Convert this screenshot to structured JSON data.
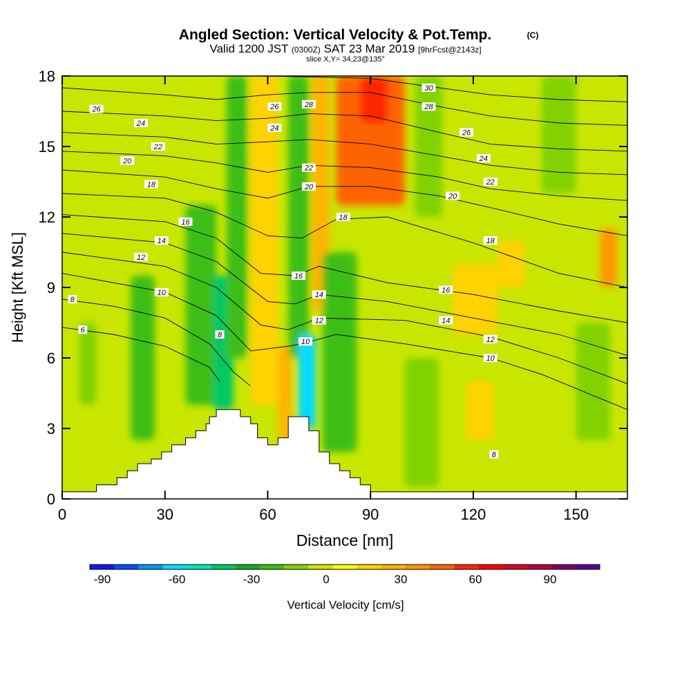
{
  "chart_data": {
    "type": "heatmap",
    "title": "Angled Section: Vertical Velocity & Pot.Temp.",
    "title_tag": "(C)",
    "subtitle": {
      "valid_prefix": "Valid 1200 JST",
      "utc": "(0300Z)",
      "valid_date": "SAT 23 Mar 2019",
      "forecast": "[9hrFcst@2143z]"
    },
    "slice_label": "slice X,Y= 34,23@135°",
    "xlabel": "Distance [nm]",
    "ylabel": "Height [Kft MSL]",
    "xlim": [
      0,
      165
    ],
    "ylim": [
      0,
      18
    ],
    "x_ticks": [
      "0",
      "30",
      "60",
      "90",
      "120",
      "150"
    ],
    "y_ticks": [
      "0",
      "3",
      "6",
      "9",
      "12",
      "15",
      "18"
    ],
    "colorbar": {
      "label": "Vertical Velocity [cm/s]",
      "tick_labels": [
        "-90",
        "-60",
        "-30",
        "0",
        "30",
        "60",
        "90"
      ],
      "bounds": [
        -95,
        110
      ],
      "colors": [
        "#1414ff",
        "#0050ff",
        "#0096ff",
        "#00dcff",
        "#00e6b4",
        "#00c864",
        "#14aa28",
        "#3cbe14",
        "#82d200",
        "#c8e600",
        "#ffff00",
        "#ffd200",
        "#ffb400",
        "#ff9600",
        "#ff6400",
        "#ff2800",
        "#ff0000",
        "#dc0028",
        "#b4003c",
        "#820064",
        "#5a0096"
      ]
    },
    "terrain_kft": [
      [
        0,
        0.3
      ],
      [
        10,
        0.3
      ],
      [
        10,
        0.6
      ],
      [
        16,
        0.6
      ],
      [
        16,
        0.9
      ],
      [
        19,
        0.9
      ],
      [
        19,
        1.2
      ],
      [
        22,
        1.2
      ],
      [
        22,
        1.5
      ],
      [
        26,
        1.5
      ],
      [
        26,
        1.7
      ],
      [
        29,
        1.7
      ],
      [
        29,
        2.0
      ],
      [
        32,
        2.0
      ],
      [
        32,
        2.3
      ],
      [
        36,
        2.3
      ],
      [
        36,
        2.6
      ],
      [
        39,
        2.6
      ],
      [
        39,
        2.9
      ],
      [
        42,
        2.9
      ],
      [
        42,
        3.2
      ],
      [
        43,
        3.2
      ],
      [
        43,
        3.5
      ],
      [
        45,
        3.5
      ],
      [
        45,
        3.8
      ],
      [
        52,
        3.8
      ],
      [
        52,
        3.5
      ],
      [
        55,
        3.5
      ],
      [
        55,
        3.2
      ],
      [
        57,
        3.2
      ],
      [
        57,
        2.6
      ],
      [
        60,
        2.6
      ],
      [
        60,
        2.3
      ],
      [
        63,
        2.3
      ],
      [
        63,
        2.6
      ],
      [
        66,
        2.6
      ],
      [
        66,
        3.5
      ],
      [
        72,
        3.5
      ],
      [
        72,
        2.9
      ],
      [
        75,
        2.9
      ],
      [
        75,
        2.0
      ],
      [
        78,
        2.0
      ],
      [
        78,
        1.5
      ],
      [
        81,
        1.5
      ],
      [
        81,
        1.2
      ],
      [
        84,
        1.2
      ],
      [
        84,
        0.9
      ],
      [
        87,
        0.9
      ],
      [
        87,
        0.6
      ],
      [
        90,
        0.6
      ],
      [
        90,
        0.3
      ],
      [
        165,
        0.3
      ]
    ],
    "vertical_velocity_bands": [
      {
        "x": 5,
        "w": 5,
        "y": [
          4.0,
          7.5
        ],
        "w_cms": -10
      },
      {
        "x": 20,
        "w": 7,
        "y": [
          2.5,
          9.5
        ],
        "w_cms": -20
      },
      {
        "x": 36,
        "w": 9,
        "y": [
          4.0,
          12.5
        ],
        "w_cms": -20
      },
      {
        "x": 44,
        "w": 6,
        "y": [
          3.8,
          9.5
        ],
        "w_cms": -45
      },
      {
        "x": 48,
        "w": 6,
        "y": [
          6.0,
          18.0
        ],
        "w_cms": -20
      },
      {
        "x": 55,
        "w": 8,
        "y": [
          4.0,
          18.0
        ],
        "w_cms": 20
      },
      {
        "x": 63,
        "w": 4,
        "y": [
          2.5,
          6.5
        ],
        "w_cms": 30
      },
      {
        "x": 66,
        "w": 6,
        "y": [
          6.0,
          18.0
        ],
        "w_cms": -25
      },
      {
        "x": 69,
        "w": 5,
        "y": [
          3.0,
          7.0
        ],
        "w_cms": -60
      },
      {
        "x": 73,
        "w": 5,
        "y": [
          8.0,
          18.0
        ],
        "w_cms": 30
      },
      {
        "x": 76,
        "w": 10,
        "y": [
          2.0,
          10.5
        ],
        "w_cms": -25
      },
      {
        "x": 80,
        "w": 20,
        "y": [
          12.5,
          18.0
        ],
        "w_cms": 50
      },
      {
        "x": 87,
        "w": 8,
        "y": [
          16.0,
          18.0
        ],
        "w_cms": 60
      },
      {
        "x": 100,
        "w": 10,
        "y": [
          0.5,
          6.0
        ],
        "w_cms": -10
      },
      {
        "x": 103,
        "w": 8,
        "y": [
          12.0,
          18.0
        ],
        "w_cms": -15
      },
      {
        "x": 118,
        "w": 8,
        "y": [
          2.5,
          5.0
        ],
        "w_cms": 20
      },
      {
        "x": 114,
        "w": 13,
        "y": [
          7.0,
          10.0
        ],
        "w_cms": 20
      },
      {
        "x": 127,
        "w": 8,
        "y": [
          9.0,
          11.0
        ],
        "w_cms": 20
      },
      {
        "x": 140,
        "w": 10,
        "y": [
          13.0,
          18.0
        ],
        "w_cms": -10
      },
      {
        "x": 150,
        "w": 10,
        "y": [
          2.5,
          7.5
        ],
        "w_cms": -15
      },
      {
        "x": 157,
        "w": 5,
        "y": [
          9.0,
          11.5
        ],
        "w_cms": 40
      }
    ],
    "isentropes": [
      {
        "theta": 6,
        "pts": [
          [
            0,
            7.3
          ],
          [
            15,
            7.0
          ],
          [
            30,
            6.5
          ],
          [
            43,
            5.6
          ],
          [
            46,
            5.0
          ]
        ]
      },
      {
        "theta": 8,
        "pts": [
          [
            0,
            8.5
          ],
          [
            15,
            8.2
          ],
          [
            30,
            7.7
          ],
          [
            43,
            6.6
          ],
          [
            50,
            5.4
          ],
          [
            55,
            4.8
          ]
        ]
      },
      {
        "theta": 10,
        "pts": [
          [
            0,
            9.6
          ],
          [
            30,
            8.8
          ],
          [
            45,
            7.8
          ],
          [
            55,
            6.3
          ],
          [
            66,
            6.5
          ],
          [
            70,
            6.6
          ],
          [
            80,
            7.0
          ],
          [
            100,
            6.6
          ],
          [
            125,
            6.0
          ],
          [
            140,
            5.3
          ],
          [
            165,
            3.8
          ]
        ]
      },
      {
        "theta": 12,
        "pts": [
          [
            0,
            10.5
          ],
          [
            30,
            9.9
          ],
          [
            45,
            9.0
          ],
          [
            58,
            7.4
          ],
          [
            66,
            7.2
          ],
          [
            75,
            7.7
          ],
          [
            100,
            7.6
          ],
          [
            125,
            6.9
          ],
          [
            145,
            6.0
          ],
          [
            165,
            4.9
          ]
        ]
      },
      {
        "theta": 14,
        "pts": [
          [
            0,
            11.3
          ],
          [
            30,
            10.9
          ],
          [
            45,
            10.1
          ],
          [
            60,
            8.4
          ],
          [
            68,
            8.3
          ],
          [
            75,
            8.7
          ],
          [
            95,
            8.4
          ],
          [
            120,
            7.7
          ],
          [
            145,
            7.0
          ],
          [
            165,
            6.1
          ]
        ]
      },
      {
        "theta": 16,
        "pts": [
          [
            0,
            12.1
          ],
          [
            30,
            11.8
          ],
          [
            45,
            11.1
          ],
          [
            58,
            9.6
          ],
          [
            68,
            9.5
          ],
          [
            75,
            9.9
          ],
          [
            95,
            9.2
          ],
          [
            120,
            8.7
          ],
          [
            145,
            8.0
          ],
          [
            165,
            7.5
          ]
        ]
      },
      {
        "theta": 18,
        "pts": [
          [
            0,
            13.0
          ],
          [
            30,
            12.8
          ],
          [
            45,
            12.2
          ],
          [
            60,
            11.2
          ],
          [
            70,
            11.1
          ],
          [
            80,
            11.9
          ],
          [
            95,
            12.0
          ],
          [
            120,
            10.9
          ],
          [
            145,
            9.6
          ],
          [
            165,
            9.0
          ]
        ]
      },
      {
        "theta": 20,
        "pts": [
          [
            0,
            14.0
          ],
          [
            30,
            13.7
          ],
          [
            45,
            13.2
          ],
          [
            60,
            12.8
          ],
          [
            72,
            13.3
          ],
          [
            90,
            13.3
          ],
          [
            110,
            12.9
          ],
          [
            125,
            12.4
          ],
          [
            145,
            11.7
          ],
          [
            165,
            11.2
          ]
        ]
      },
      {
        "theta": 22,
        "pts": [
          [
            0,
            14.8
          ],
          [
            30,
            14.6
          ],
          [
            45,
            14.3
          ],
          [
            60,
            13.9
          ],
          [
            72,
            14.2
          ],
          [
            90,
            14.1
          ],
          [
            110,
            13.7
          ],
          [
            125,
            13.2
          ],
          [
            145,
            12.9
          ],
          [
            165,
            12.7
          ]
        ]
      },
      {
        "theta": 24,
        "pts": [
          [
            0,
            15.6
          ],
          [
            30,
            15.4
          ],
          [
            45,
            15.1
          ],
          [
            60,
            15.2
          ],
          [
            72,
            15.3
          ],
          [
            90,
            15.1
          ],
          [
            110,
            14.6
          ],
          [
            125,
            14.2
          ],
          [
            145,
            13.9
          ],
          [
            165,
            13.8
          ]
        ]
      },
      {
        "theta": 26,
        "pts": [
          [
            0,
            16.5
          ],
          [
            30,
            16.3
          ],
          [
            45,
            16.1
          ],
          [
            60,
            16.2
          ],
          [
            72,
            16.4
          ],
          [
            90,
            16.3
          ],
          [
            110,
            15.6
          ],
          [
            125,
            15.1
          ],
          [
            145,
            14.9
          ],
          [
            165,
            14.8
          ]
        ]
      },
      {
        "theta": 28,
        "pts": [
          [
            0,
            17.5
          ],
          [
            30,
            17.2
          ],
          [
            45,
            17.0
          ],
          [
            60,
            17.2
          ],
          [
            72,
            17.3
          ],
          [
            90,
            17.3
          ],
          [
            110,
            16.7
          ],
          [
            125,
            16.3
          ],
          [
            145,
            16.0
          ],
          [
            165,
            15.9
          ]
        ]
      },
      {
        "theta": 30,
        "pts": [
          [
            60,
            18.0
          ],
          [
            90,
            17.9
          ],
          [
            110,
            17.5
          ],
          [
            125,
            17.2
          ],
          [
            145,
            17.0
          ],
          [
            165,
            16.9
          ]
        ]
      }
    ],
    "contour_labels": [
      {
        "text": "26",
        "x": 10,
        "y": 16.6
      },
      {
        "text": "24",
        "x": 23,
        "y": 16.0
      },
      {
        "text": "22",
        "x": 28,
        "y": 15.0
      },
      {
        "text": "20",
        "x": 19,
        "y": 14.4
      },
      {
        "text": "18",
        "x": 26,
        "y": 13.4
      },
      {
        "text": "16",
        "x": 36,
        "y": 11.8
      },
      {
        "text": "14",
        "x": 29,
        "y": 11.0
      },
      {
        "text": "12",
        "x": 23,
        "y": 10.3
      },
      {
        "text": "10",
        "x": 29,
        "y": 8.8
      },
      {
        "text": "8",
        "x": 3,
        "y": 8.5
      },
      {
        "text": "6",
        "x": 6,
        "y": 7.2
      },
      {
        "text": "8",
        "x": 46,
        "y": 7.0
      },
      {
        "text": "26",
        "x": 62,
        "y": 16.7
      },
      {
        "text": "28",
        "x": 72,
        "y": 16.8
      },
      {
        "text": "24",
        "x": 62,
        "y": 15.8
      },
      {
        "text": "22",
        "x": 72,
        "y": 14.1
      },
      {
        "text": "20",
        "x": 72,
        "y": 13.3
      },
      {
        "text": "18",
        "x": 82,
        "y": 12.0
      },
      {
        "text": "16",
        "x": 69,
        "y": 9.5
      },
      {
        "text": "14",
        "x": 75,
        "y": 8.7
      },
      {
        "text": "12",
        "x": 75,
        "y": 7.6
      },
      {
        "text": "10",
        "x": 71,
        "y": 6.7
      },
      {
        "text": "30",
        "x": 107,
        "y": 17.5
      },
      {
        "text": "28",
        "x": 107,
        "y": 16.7
      },
      {
        "text": "26",
        "x": 118,
        "y": 15.6
      },
      {
        "text": "24",
        "x": 123,
        "y": 14.5
      },
      {
        "text": "22",
        "x": 125,
        "y": 13.5
      },
      {
        "text": "20",
        "x": 114,
        "y": 12.9
      },
      {
        "text": "18",
        "x": 125,
        "y": 11.0
      },
      {
        "text": "16",
        "x": 112,
        "y": 8.9
      },
      {
        "text": "14",
        "x": 112,
        "y": 7.6
      },
      {
        "text": "12",
        "x": 125,
        "y": 6.8
      },
      {
        "text": "10",
        "x": 125,
        "y": 6.0
      },
      {
        "text": "8",
        "x": 126,
        "y": 1.9
      }
    ]
  }
}
